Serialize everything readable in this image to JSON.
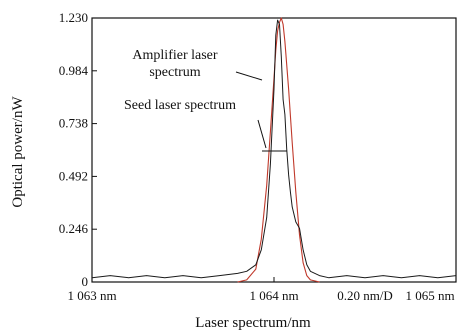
{
  "chart_data": {
    "type": "line",
    "title": "",
    "xlabel": "Laser spectrum/nm",
    "ylabel": "Optical power/nW",
    "xlim": [
      1063.0,
      1065.0
    ],
    "ylim": [
      0,
      1.23
    ],
    "x_tick_labels": [
      "1 063 nm",
      "1 064 nm",
      "0.20 nm/D",
      "1 065 nm"
    ],
    "y_ticks": [
      0,
      0.246,
      0.492,
      0.738,
      0.984,
      1.23
    ],
    "y_tick_labels": [
      "0",
      "0.246",
      "0.492",
      "0.738",
      "0.984",
      "1.230"
    ],
    "grid": false,
    "legend": "none",
    "series": [
      {
        "name": "Amplifier laser spectrum",
        "color": "#c0392b",
        "x": [
          1063.8,
          1063.85,
          1063.9,
          1063.93,
          1063.96,
          1063.98,
          1064.0,
          1064.01,
          1064.02,
          1064.03,
          1064.04,
          1064.05,
          1064.06,
          1064.08,
          1064.1,
          1064.12,
          1064.14,
          1064.16,
          1064.18,
          1064.2,
          1064.25
        ],
        "values": [
          0,
          0.01,
          0.06,
          0.2,
          0.45,
          0.7,
          0.95,
          1.08,
          1.17,
          1.21,
          1.23,
          1.2,
          1.12,
          0.9,
          0.65,
          0.42,
          0.22,
          0.09,
          0.03,
          0.01,
          0
        ]
      },
      {
        "name": "Seed laser spectrum",
        "color": "#1a1a1a",
        "x": [
          1063.0,
          1063.1,
          1063.2,
          1063.3,
          1063.4,
          1063.5,
          1063.6,
          1063.7,
          1063.8,
          1063.85,
          1063.9,
          1063.93,
          1063.96,
          1063.98,
          1064.0,
          1064.01,
          1064.02,
          1064.03,
          1064.04,
          1064.05,
          1064.06,
          1064.07,
          1064.08,
          1064.09,
          1064.1,
          1064.12,
          1064.14,
          1064.16,
          1064.18,
          1064.2,
          1064.25,
          1064.3,
          1064.4,
          1064.5,
          1064.6,
          1064.7,
          1064.8,
          1064.9,
          1065.0
        ],
        "values": [
          0.02,
          0.03,
          0.02,
          0.03,
          0.02,
          0.03,
          0.02,
          0.03,
          0.04,
          0.05,
          0.08,
          0.15,
          0.3,
          0.55,
          0.9,
          1.15,
          1.22,
          1.2,
          1.05,
          0.85,
          0.78,
          0.62,
          0.5,
          0.42,
          0.35,
          0.28,
          0.25,
          0.15,
          0.08,
          0.05,
          0.03,
          0.02,
          0.03,
          0.02,
          0.03,
          0.02,
          0.03,
          0.02,
          0.03
        ]
      }
    ],
    "annotations": [
      {
        "text": "Amplifier laser",
        "target": "Amplifier laser spectrum"
      },
      {
        "text": "spectrum",
        "target": "Amplifier laser spectrum"
      },
      {
        "text": "Seed laser spectrum",
        "target": "Seed laser spectrum"
      }
    ]
  }
}
